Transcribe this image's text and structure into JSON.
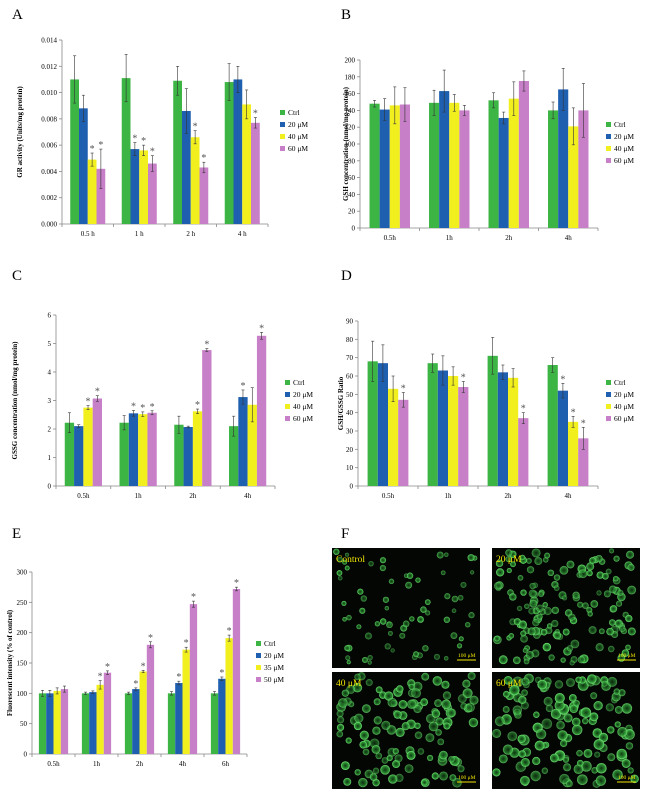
{
  "colors": {
    "Ctrl": "#3cb544",
    "20 μM": "#1f5fb0",
    "35 μM": "#f2ef1f",
    "40 μM": "#f2ef1f",
    "50 μM": "#c77fc7",
    "60 μM": "#c77fc7"
  },
  "chart_data": [
    {
      "id": "A",
      "type": "bar",
      "label": "A",
      "ylabel": "GR activity (Units/mg protein)",
      "ylim": [
        0,
        0.014
      ],
      "yticks": [
        0,
        0.002,
        0.004,
        0.006,
        0.008,
        0.01,
        0.012,
        0.014
      ],
      "ytick_labels": [
        "0.000",
        "0.002",
        "0.004",
        "0.006",
        "0.008",
        "0.010",
        "0.012",
        "0.014"
      ],
      "categories": [
        "0.5 h",
        "1 h",
        "2 h",
        "4 h"
      ],
      "legend": [
        "Ctrl",
        "20 μM",
        "40 μM",
        "60 μM"
      ],
      "series": [
        {
          "name": "Ctrl",
          "values": [
            0.011,
            0.0111,
            0.0109,
            0.0108
          ],
          "errors": [
            0.0018,
            0.0018,
            0.0011,
            0.0014
          ],
          "stars": [
            false,
            false,
            false,
            false
          ]
        },
        {
          "name": "20 μM",
          "values": [
            0.0088,
            0.0057,
            0.0086,
            0.011
          ],
          "errors": [
            0.001,
            0.0005,
            0.0017,
            0.001
          ],
          "stars": [
            false,
            true,
            false,
            false
          ]
        },
        {
          "name": "40 μM",
          "values": [
            0.0049,
            0.0056,
            0.0066,
            0.0091
          ],
          "errors": [
            0.0005,
            0.0004,
            0.0005,
            0.0011
          ],
          "stars": [
            true,
            true,
            true,
            false
          ]
        },
        {
          "name": "60 μM",
          "values": [
            0.0042,
            0.0046,
            0.0043,
            0.0077
          ],
          "errors": [
            0.0015,
            0.0006,
            0.0004,
            0.0004
          ],
          "stars": [
            true,
            true,
            true,
            true
          ]
        }
      ]
    },
    {
      "id": "B",
      "type": "bar",
      "label": "B",
      "ylabel": "GSH concentration (nmol/mg protein)",
      "ylim": [
        0,
        200
      ],
      "yticks": [
        0,
        20,
        40,
        60,
        80,
        100,
        120,
        140,
        160,
        180,
        200
      ],
      "ytick_labels": [
        "0",
        "20",
        "40",
        "60",
        "80",
        "100",
        "120",
        "140",
        "160",
        "180",
        "200"
      ],
      "categories": [
        "0.5h",
        "1h",
        "2h",
        "4h"
      ],
      "legend": [
        "Ctrl",
        "20 μM",
        "40 μM",
        "60 μM"
      ],
      "series": [
        {
          "name": "Ctrl",
          "values": [
            148,
            149,
            152,
            140
          ],
          "errors": [
            4,
            15,
            9,
            10
          ],
          "stars": [
            false,
            false,
            false,
            false
          ]
        },
        {
          "name": "20 μM",
          "values": [
            141,
            163,
            131,
            165
          ],
          "errors": [
            13,
            25,
            7,
            25
          ],
          "stars": [
            false,
            false,
            false,
            false
          ]
        },
        {
          "name": "40 μM",
          "values": [
            146,
            149,
            154,
            121
          ],
          "errors": [
            22,
            10,
            20,
            22
          ],
          "stars": [
            false,
            false,
            false,
            false
          ]
        },
        {
          "name": "60 μM",
          "values": [
            147,
            140,
            175,
            140
          ],
          "errors": [
            20,
            6,
            12,
            32
          ],
          "stars": [
            false,
            false,
            false,
            false
          ]
        }
      ]
    },
    {
      "id": "C",
      "type": "bar",
      "label": "C",
      "ylabel": "GSSG concentration (nmol/mg protein)",
      "ylim": [
        0,
        6
      ],
      "yticks": [
        0,
        1,
        2,
        3,
        4,
        5,
        6
      ],
      "ytick_labels": [
        "0",
        "1",
        "2",
        "3",
        "4",
        "5",
        "6"
      ],
      "categories": [
        "0.5h",
        "1h",
        "2h",
        "4h"
      ],
      "legend": [
        "Ctrl",
        "20 μM",
        "40 μM",
        "60 μM"
      ],
      "series": [
        {
          "name": "Ctrl",
          "values": [
            2.22,
            2.22,
            2.15,
            2.1
          ],
          "errors": [
            0.35,
            0.25,
            0.3,
            0.35
          ],
          "stars": [
            false,
            false,
            false,
            false
          ]
        },
        {
          "name": "20 μM",
          "values": [
            2.1,
            2.55,
            2.07,
            3.12
          ],
          "errors": [
            0.05,
            0.1,
            0.03,
            0.25
          ],
          "stars": [
            false,
            true,
            false,
            true
          ]
        },
        {
          "name": "40 μM",
          "values": [
            2.75,
            2.52,
            2.62,
            2.85
          ],
          "errors": [
            0.07,
            0.08,
            0.08,
            0.6
          ],
          "stars": [
            true,
            true,
            true,
            false
          ]
        },
        {
          "name": "60 μM",
          "values": [
            3.07,
            2.57,
            4.77,
            5.27
          ],
          "errors": [
            0.1,
            0.07,
            0.05,
            0.12
          ],
          "stars": [
            true,
            true,
            true,
            true
          ]
        }
      ]
    },
    {
      "id": "D",
      "type": "bar",
      "label": "D",
      "ylabel": "GSH/GSSG Ratio",
      "ylim": [
        0,
        90
      ],
      "yticks": [
        0,
        10,
        20,
        30,
        40,
        50,
        60,
        70,
        80,
        90
      ],
      "ytick_labels": [
        "0",
        "10",
        "20",
        "30",
        "40",
        "50",
        "60",
        "70",
        "80",
        "90"
      ],
      "categories": [
        "0.5h",
        "1h",
        "2h",
        "4h"
      ],
      "legend": [
        "Ctrl",
        "20 μM",
        "40 μM",
        "60 μM"
      ],
      "series": [
        {
          "name": "Ctrl",
          "values": [
            68,
            67,
            71,
            66
          ],
          "errors": [
            11,
            5,
            10,
            4
          ],
          "stars": [
            false,
            false,
            false,
            false
          ]
        },
        {
          "name": "20 μM",
          "values": [
            67,
            63,
            62,
            52
          ],
          "errors": [
            10,
            8,
            4,
            4
          ],
          "stars": [
            false,
            false,
            false,
            true
          ]
        },
        {
          "name": "40 μM",
          "values": [
            53,
            60,
            59,
            35
          ],
          "errors": [
            7,
            5,
            5,
            3
          ],
          "stars": [
            false,
            false,
            false,
            true
          ]
        },
        {
          "name": "60 μM",
          "values": [
            47,
            54,
            37,
            26
          ],
          "errors": [
            4,
            3,
            3,
            6
          ],
          "stars": [
            true,
            true,
            true,
            true
          ]
        }
      ]
    },
    {
      "id": "E",
      "type": "bar",
      "label": "E",
      "ylabel": "Fluorescent intensity (% of control)",
      "ylim": [
        0,
        300
      ],
      "yticks": [
        0,
        50,
        100,
        150,
        200,
        250,
        300
      ],
      "ytick_labels": [
        "0",
        "50",
        "100",
        "150",
        "200",
        "250",
        "300"
      ],
      "categories": [
        "0.5h",
        "1h",
        "2h",
        "4h",
        "6h"
      ],
      "legend": [
        "Ctrl",
        "20 μM",
        "35 μM",
        "50 μM"
      ],
      "series": [
        {
          "name": "Ctrl",
          "values": [
            100,
            100,
            100,
            100,
            100
          ],
          "errors": [
            5,
            2,
            2,
            3,
            3
          ],
          "stars": [
            false,
            false,
            false,
            false,
            false
          ]
        },
        {
          "name": "20 μM",
          "values": [
            100,
            102,
            107,
            117,
            124
          ],
          "errors": [
            5,
            2,
            2,
            3,
            3
          ],
          "stars": [
            false,
            false,
            true,
            true,
            true
          ]
        },
        {
          "name": "35 μM",
          "values": [
            104,
            114,
            136,
            172,
            191
          ],
          "errors": [
            5,
            7,
            2,
            4,
            5
          ],
          "stars": [
            false,
            true,
            true,
            true,
            true
          ]
        },
        {
          "name": "50 μM",
          "values": [
            107,
            134,
            180,
            247,
            272
          ],
          "errors": [
            5,
            3,
            5,
            5,
            3
          ],
          "stars": [
            false,
            true,
            true,
            true,
            true
          ]
        }
      ]
    }
  ],
  "panel_F": {
    "label": "F",
    "images": [
      {
        "label": "Control",
        "scale": "100 μM"
      },
      {
        "label": "20 μM",
        "scale": "100 μM"
      },
      {
        "label": "40 μM",
        "scale": "100 μM"
      },
      {
        "label": "60 μM",
        "scale": "100 μM"
      }
    ]
  }
}
